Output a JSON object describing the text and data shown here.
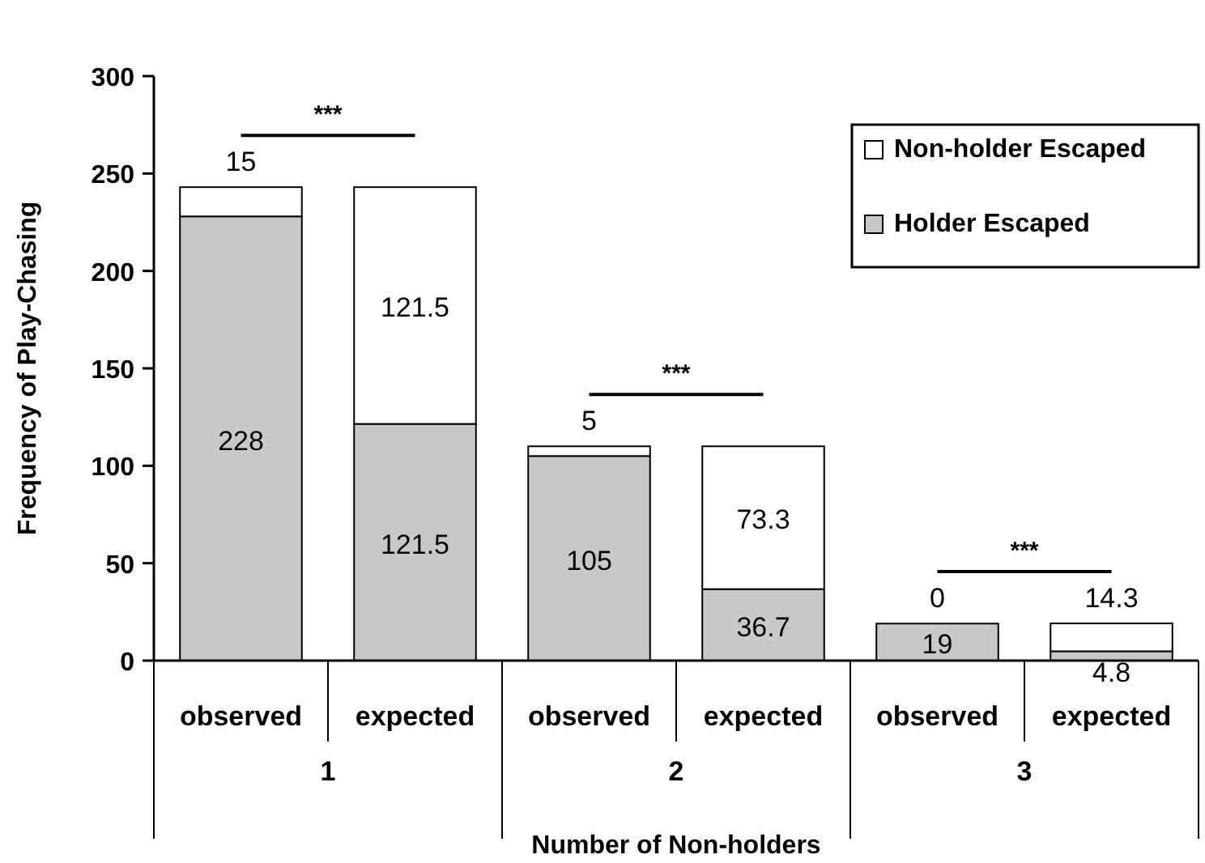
{
  "chart_data": {
    "type": "bar",
    "stacked": true,
    "xlabel": "Number of Non-holders",
    "ylabel": "Frequency of Play-Chasing",
    "categories": [
      "observed",
      "expected",
      "observed",
      "expected",
      "observed",
      "expected"
    ],
    "series": [
      {
        "name": "Holder Escaped",
        "color": "#c8c8c8",
        "values": [
          228,
          121.5,
          105,
          36.7,
          19,
          4.8
        ]
      },
      {
        "name": "Non-holder Escaped",
        "color": "#ffffff",
        "values": [
          15,
          121.5,
          5,
          73.3,
          0,
          14.3
        ]
      }
    ],
    "ylim": [
      0,
      300
    ],
    "yticks": [
      0,
      50,
      100,
      150,
      200,
      250,
      300
    ],
    "data_labels": true,
    "legend": "top right",
    "annotations": [
      "***",
      "***",
      "***",
      "1",
      "2",
      "3"
    ]
  }
}
